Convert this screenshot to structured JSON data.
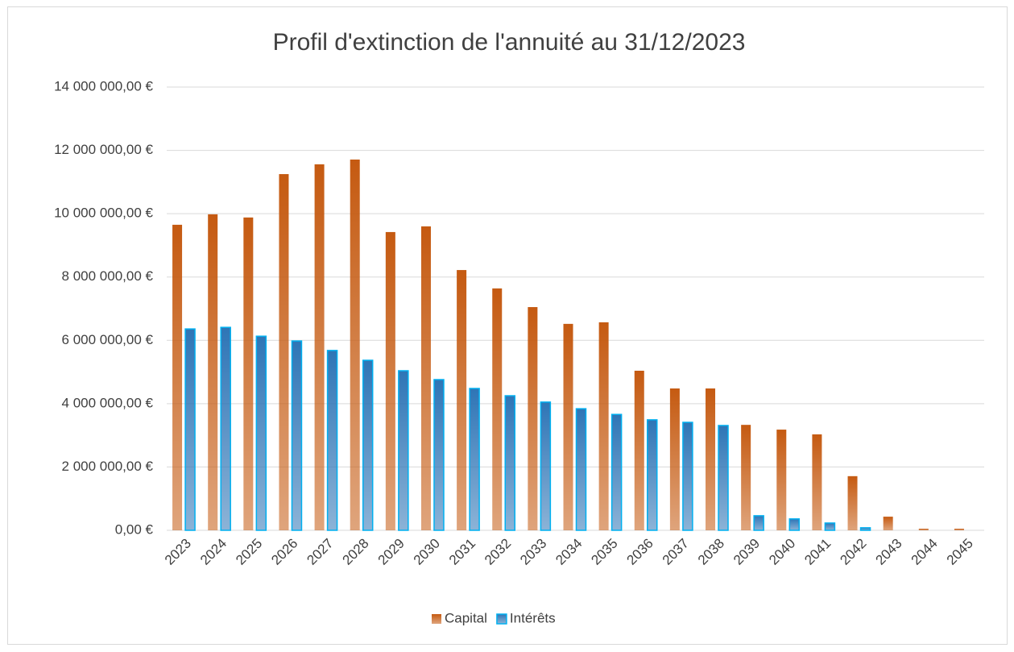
{
  "chart_data": {
    "type": "bar",
    "title": "Profil d'extinction de l'annuité au 31/12/2023",
    "categories": [
      "2023",
      "2024",
      "2025",
      "2026",
      "2027",
      "2028",
      "2029",
      "2030",
      "2031",
      "2032",
      "2033",
      "2034",
      "2035",
      "2036",
      "2037",
      "2038",
      "2039",
      "2040",
      "2041",
      "2042",
      "2043",
      "2044",
      "2045"
    ],
    "series": [
      {
        "name": "Capital",
        "color": "#c55a11",
        "values": [
          9650000,
          9980000,
          9880000,
          11250000,
          11560000,
          11710000,
          9420000,
          9600000,
          8220000,
          7640000,
          7050000,
          6520000,
          6570000,
          5040000,
          4480000,
          4480000,
          3330000,
          3180000,
          3030000,
          1710000,
          430000,
          50000,
          50000
        ]
      },
      {
        "name": "Intérêts",
        "color": "#2e75b6",
        "edgecolor": "#00b0f0",
        "values": [
          6360000,
          6410000,
          6130000,
          5980000,
          5680000,
          5370000,
          5040000,
          4760000,
          4480000,
          4250000,
          4050000,
          3840000,
          3660000,
          3490000,
          3410000,
          3310000,
          460000,
          360000,
          230000,
          80000,
          0,
          0,
          0
        ]
      }
    ],
    "ylim": [
      0,
      14000000
    ],
    "yticks": [
      {
        "value": 0,
        "label": "0,00 €"
      },
      {
        "value": 2000000,
        "label": "2 000 000,00 €"
      },
      {
        "value": 4000000,
        "label": "4 000 000,00 €"
      },
      {
        "value": 6000000,
        "label": "6 000 000,00 €"
      },
      {
        "value": 8000000,
        "label": "8 000 000,00 €"
      },
      {
        "value": 10000000,
        "label": "10 000 000,00 €"
      },
      {
        "value": 12000000,
        "label": "12 000 000,00 €"
      },
      {
        "value": 14000000,
        "label": "14 000 000,00 €"
      }
    ],
    "grid": true,
    "legend": "bottom"
  }
}
